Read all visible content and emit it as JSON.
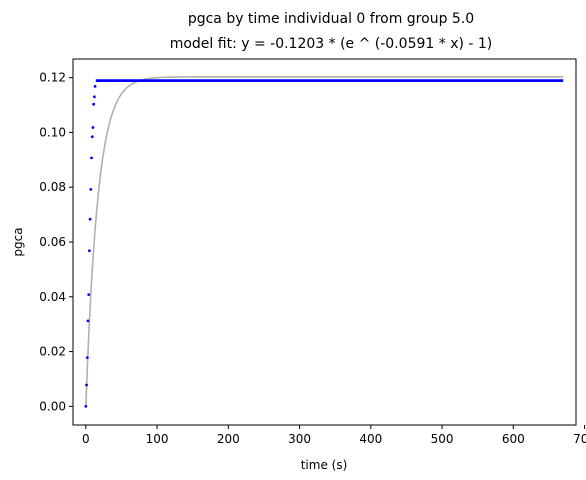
{
  "chart_data": {
    "type": "scatter",
    "title": "pgca by time individual 0 from group 5.0",
    "subtitle": "model fit: y = -0.1203 * (e ^ (-0.0591 * x) - 1)",
    "xlabel": "time (s)",
    "ylabel": "pgca",
    "xlim": [
      -18,
      688
    ],
    "ylim": [
      -0.0068,
      0.1268
    ],
    "xticks": [
      0,
      100,
      200,
      300,
      400,
      500,
      600,
      700
    ],
    "xtick_labels": [
      "0",
      "100",
      "200",
      "300",
      "400",
      "500",
      "600",
      "700"
    ],
    "yticks": [
      0.0,
      0.02,
      0.04,
      0.06,
      0.08,
      0.1,
      0.12
    ],
    "ytick_labels": [
      "0.00",
      "0.02",
      "0.04",
      "0.06",
      "0.08",
      "0.10",
      "0.12"
    ],
    "grid": false,
    "colors": {
      "points": "#0000ff",
      "fit": "#b0b0b0",
      "axes": "#000000"
    },
    "fit": {
      "a": -0.1203,
      "b": -0.0591,
      "x_start": 0,
      "x_end": 670
    },
    "observed": {
      "x": [
        0,
        1,
        2,
        3,
        4,
        5,
        6,
        7,
        8,
        9,
        10,
        11,
        12,
        13
      ],
      "y": [
        0.0,
        0.0078,
        0.0178,
        0.0312,
        0.0408,
        0.0568,
        0.0683,
        0.0792,
        0.0907,
        0.0984,
        0.1018,
        0.1103,
        0.113,
        0.1168
      ]
    },
    "plateau": {
      "value": 0.1189,
      "x_start": 14,
      "x_end": 670
    }
  }
}
